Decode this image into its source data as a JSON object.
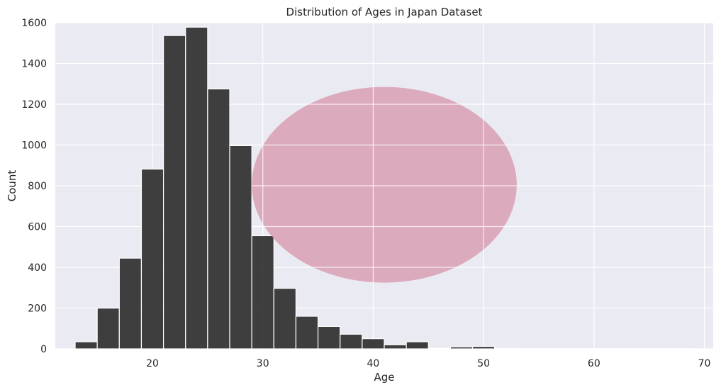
{
  "chart_data": {
    "type": "bar",
    "title": "Distribution of Ages in Japan Dataset",
    "xlabel": "Age",
    "ylabel": "Count",
    "xlim": [
      11.2,
      70.8
    ],
    "ylim": [
      0,
      1600
    ],
    "xticks": [
      20,
      30,
      40,
      50,
      60,
      70
    ],
    "yticks": [
      0,
      200,
      400,
      600,
      800,
      1000,
      1200,
      1400,
      1600
    ],
    "grid": true,
    "bin_width": 2,
    "bins": [
      {
        "start": 13,
        "count": 35
      },
      {
        "start": 15,
        "count": 200
      },
      {
        "start": 17,
        "count": 445
      },
      {
        "start": 19,
        "count": 882
      },
      {
        "start": 21,
        "count": 1537
      },
      {
        "start": 23,
        "count": 1578
      },
      {
        "start": 25,
        "count": 1275
      },
      {
        "start": 27,
        "count": 997
      },
      {
        "start": 29,
        "count": 555
      },
      {
        "start": 31,
        "count": 297
      },
      {
        "start": 33,
        "count": 160
      },
      {
        "start": 35,
        "count": 110
      },
      {
        "start": 37,
        "count": 72
      },
      {
        "start": 39,
        "count": 50
      },
      {
        "start": 41,
        "count": 20
      },
      {
        "start": 43,
        "count": 35
      },
      {
        "start": 45,
        "count": 3
      },
      {
        "start": 47,
        "count": 10
      },
      {
        "start": 49,
        "count": 12
      },
      {
        "start": 51,
        "count": 2
      },
      {
        "start": 53,
        "count": 1
      },
      {
        "start": 55,
        "count": 1
      },
      {
        "start": 57,
        "count": 1
      },
      {
        "start": 59,
        "count": 1
      },
      {
        "start": 61,
        "count": 1
      },
      {
        "start": 63,
        "count": 1
      },
      {
        "start": 65,
        "count": 1
      },
      {
        "start": 67,
        "count": 1
      }
    ],
    "overlay_ellipse": {
      "center_x": 41,
      "center_y": 805,
      "radius_x": 12,
      "radius_y": 480,
      "color": "#d4879f",
      "opacity": 0.65
    },
    "colors": {
      "bar": "#262626",
      "background": "#eaeaf2",
      "grid": "#ffffff"
    }
  }
}
